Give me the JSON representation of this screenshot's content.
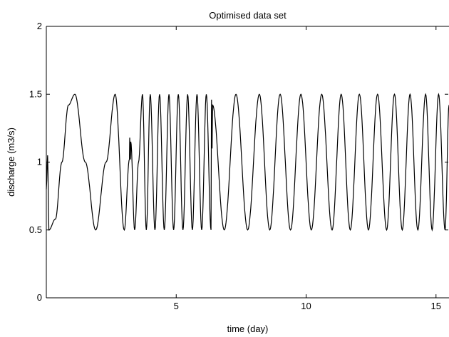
{
  "chart_data": {
    "type": "line",
    "title": "Optimised data set",
    "xlabel": "time (day)",
    "ylabel": "discharge (m3/s)",
    "xlim": [
      0,
      15.5
    ],
    "ylim": [
      0,
      2
    ],
    "x_ticks": [
      5,
      10,
      15
    ],
    "x_tick_labels": [
      "5",
      "10",
      "15"
    ],
    "y_ticks": [
      0,
      0.5,
      1,
      1.5,
      2
    ],
    "y_tick_labels": [
      "0",
      "0.5",
      "1",
      "1.5",
      "2"
    ],
    "grid": false,
    "legend": "none",
    "line_color": "#000000",
    "series": [
      {
        "x": [
          0.0,
          0.05,
          0.1,
          0.35,
          0.6,
          0.85,
          1.1,
          1.5,
          1.9,
          2.3,
          2.65,
          3.0,
          3.2,
          3.21,
          3.24,
          3.25,
          3.4,
          3.55,
          3.7,
          3.85,
          4.0,
          4.18,
          4.36,
          4.54,
          4.72,
          4.9,
          5.08,
          5.26,
          5.44,
          5.62,
          5.8,
          5.98,
          6.16,
          6.34,
          6.35,
          6.36,
          6.38,
          6.4,
          6.85,
          7.3,
          7.75,
          8.2,
          8.6,
          9.0,
          9.4,
          9.8,
          10.2,
          10.6,
          11.0,
          11.35,
          11.7,
          12.05,
          12.4,
          12.75,
          13.1,
          13.4,
          13.7,
          14.0,
          14.3,
          14.6,
          14.85,
          15.1,
          15.35,
          15.5
        ],
        "values": [
          0.8,
          1.05,
          0.5,
          0.58,
          1.0,
          1.42,
          1.5,
          1.0,
          0.5,
          1.0,
          1.5,
          0.5,
          1.02,
          1.18,
          1.02,
          1.15,
          0.5,
          1.0,
          1.5,
          0.5,
          1.5,
          0.5,
          1.5,
          0.5,
          1.5,
          0.5,
          1.5,
          0.5,
          1.5,
          0.5,
          1.5,
          0.5,
          1.5,
          0.5,
          1.1,
          1.46,
          1.1,
          1.42,
          0.5,
          1.5,
          0.5,
          1.5,
          0.5,
          1.5,
          0.5,
          1.5,
          0.5,
          1.5,
          0.5,
          1.5,
          0.5,
          1.5,
          0.5,
          1.5,
          0.5,
          1.5,
          0.5,
          1.5,
          0.5,
          1.5,
          0.5,
          1.5,
          0.5,
          1.42
        ]
      }
    ]
  }
}
